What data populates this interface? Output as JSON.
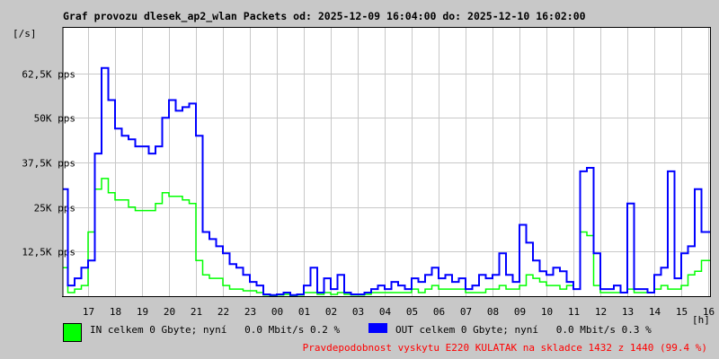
{
  "chart_data": {
    "type": "line",
    "title": "Graf provozu dlesek_ap2_wlan Packets od: 2025-12-09 16:04:00 do: 2025-12-10 16:02:00",
    "ylabel": "[/s]",
    "xlabel": "[h]",
    "ylim": [
      0,
      75500
    ],
    "grid": true,
    "y_ticks": [
      {
        "value": 12500,
        "label": "12,5K pps"
      },
      {
        "value": 25000,
        "label": "25K pps"
      },
      {
        "value": 37500,
        "label": "37,5K pps"
      },
      {
        "value": 50000,
        "label": "50K pps"
      },
      {
        "value": 62500,
        "label": "62,5K pps"
      }
    ],
    "x_ticks": [
      "17",
      "18",
      "19",
      "20",
      "21",
      "22",
      "23",
      "00",
      "01",
      "02",
      "03",
      "04",
      "05",
      "06",
      "07",
      "08",
      "09",
      "10",
      "11",
      "12",
      "13",
      "14",
      "15",
      "16"
    ],
    "x": [
      "16:15",
      "16:30",
      "16:45",
      "17:00",
      "17:15",
      "17:30",
      "17:45",
      "18:00",
      "18:15",
      "18:30",
      "18:45",
      "19:00",
      "19:15",
      "19:30",
      "19:45",
      "20:00",
      "20:15",
      "20:30",
      "20:45",
      "21:00",
      "21:15",
      "21:30",
      "21:45",
      "22:00",
      "22:15",
      "22:30",
      "22:45",
      "23:00",
      "23:15",
      "23:30",
      "23:45",
      "00:00",
      "00:15",
      "00:30",
      "00:45",
      "01:00",
      "01:15",
      "01:30",
      "01:45",
      "02:00",
      "02:15",
      "02:30",
      "02:45",
      "03:00",
      "03:15",
      "03:30",
      "03:45",
      "04:00",
      "04:15",
      "04:30",
      "04:45",
      "05:00",
      "05:15",
      "05:30",
      "05:45",
      "06:00",
      "06:15",
      "06:30",
      "06:45",
      "07:00",
      "07:15",
      "07:30",
      "07:45",
      "08:00",
      "08:15",
      "08:30",
      "08:45",
      "09:00",
      "09:15",
      "09:30",
      "09:45",
      "10:00",
      "10:15",
      "10:30",
      "10:45",
      "11:00",
      "11:15",
      "11:30",
      "11:45",
      "12:00",
      "12:15",
      "12:30",
      "12:45",
      "13:00",
      "13:15",
      "13:30",
      "13:45",
      "14:00",
      "14:15",
      "14:30",
      "14:45",
      "15:00",
      "15:15",
      "15:30",
      "15:45",
      "16:00"
    ],
    "series": [
      {
        "name": "IN",
        "color": "#00ff00",
        "values": [
          8000,
          1000,
          2000,
          3000,
          18000,
          30000,
          33000,
          29000,
          27000,
          27000,
          25000,
          24000,
          24000,
          24000,
          26000,
          29000,
          28000,
          28000,
          27000,
          26000,
          10000,
          6000,
          5000,
          5000,
          3000,
          2000,
          2000,
          1500,
          1500,
          1000,
          300,
          200,
          300,
          500,
          200,
          300,
          1000,
          1000,
          500,
          1000,
          500,
          1000,
          500,
          300,
          300,
          500,
          1000,
          1000,
          1000,
          1000,
          1000,
          1000,
          2000,
          1000,
          2000,
          3000,
          2000,
          2000,
          2000,
          2000,
          1000,
          1000,
          1000,
          2000,
          2000,
          3000,
          2000,
          2000,
          3000,
          6000,
          5000,
          4000,
          3000,
          3000,
          2000,
          3000,
          2000,
          18000,
          17000,
          3000,
          1000,
          1000,
          1000,
          1000,
          2000,
          1000,
          1000,
          1000,
          2000,
          3000,
          2000,
          2000,
          3000,
          6000,
          7000,
          10000
        ]
      },
      {
        "name": "OUT",
        "color": "#0000ff",
        "values": [
          30000,
          3000,
          5000,
          8000,
          10000,
          40000,
          64000,
          55000,
          47000,
          45000,
          44000,
          42000,
          42000,
          40000,
          42000,
          50000,
          55000,
          52000,
          53000,
          54000,
          45000,
          18000,
          16000,
          14000,
          12000,
          9000,
          8000,
          6000,
          4000,
          3000,
          500,
          300,
          500,
          1000,
          300,
          500,
          3000,
          8000,
          1000,
          5000,
          2000,
          6000,
          1000,
          500,
          500,
          1000,
          2000,
          3000,
          2000,
          4000,
          3000,
          2000,
          5000,
          4000,
          6000,
          8000,
          5000,
          6000,
          4000,
          5000,
          2000,
          3000,
          6000,
          5000,
          6000,
          12000,
          6000,
          4000,
          20000,
          15000,
          10000,
          7000,
          6000,
          8000,
          7000,
          4000,
          2000,
          35000,
          36000,
          12000,
          2000,
          2000,
          3000,
          1000,
          26000,
          2000,
          2000,
          1000,
          6000,
          8000,
          35000,
          5000,
          12000,
          14000,
          30000,
          18000
        ]
      }
    ]
  },
  "legend": {
    "in_label": "IN celkem 0 Gbyte; nyní   0.0 Mbit/s 0.2 %",
    "out_label": "OUT celkem 0 Gbyte; nyní   0.0 Mbit/s 0.3 %",
    "in_color": "#00ff00",
    "out_color": "#0000ff"
  },
  "footer_note": "Pravdepodobnost vyskytu E220 KULATAK na skladce 1432 z 1440 (99.4 %)"
}
